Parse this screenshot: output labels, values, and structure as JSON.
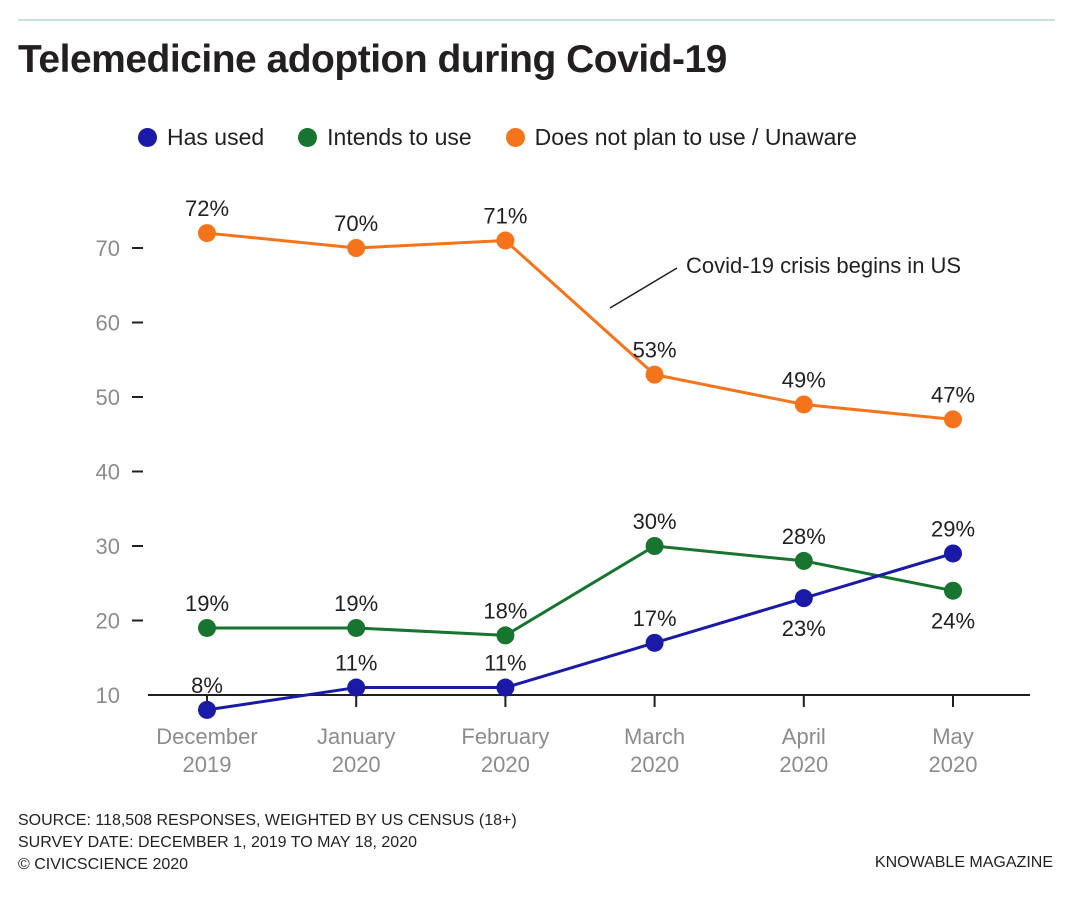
{
  "header": {
    "title": "Telemedicine adoption during Covid-19"
  },
  "colors": {
    "has_used": "#1a1aa6",
    "intends_to_use": "#17752f",
    "does_not_plan": "#f5741b",
    "axis": "#231f20",
    "tick_label": "#8c8c8c",
    "rule": "#c6e2e0"
  },
  "chart_data": {
    "type": "line",
    "title": "Telemedicine adoption during Covid-19",
    "xlabel": "",
    "ylabel": "",
    "categories": [
      "December 2019",
      "January 2020",
      "February 2020",
      "March 2020",
      "April 2020",
      "May 2020"
    ],
    "x_tick_labels": [
      [
        "December",
        "2019"
      ],
      [
        "January",
        "2020"
      ],
      [
        "February",
        "2020"
      ],
      [
        "March",
        "2020"
      ],
      [
        "April",
        "2020"
      ],
      [
        "May",
        "2020"
      ]
    ],
    "y_ticks": [
      10,
      20,
      30,
      40,
      50,
      60,
      70
    ],
    "ylim": [
      10,
      75
    ],
    "grid": false,
    "legend_position": "top",
    "series": [
      {
        "name": "Has used",
        "color": "#1a1aa6",
        "values": [
          8,
          11,
          11,
          17,
          23,
          29
        ],
        "labels": [
          "8%",
          "11%",
          "11%",
          "17%",
          "23%",
          "29%"
        ],
        "label_side": [
          "above",
          "above",
          "above",
          "above",
          "below",
          "above"
        ]
      },
      {
        "name": "Intends to use",
        "color": "#17752f",
        "values": [
          19,
          19,
          18,
          30,
          28,
          24
        ],
        "labels": [
          "19%",
          "19%",
          "18%",
          "30%",
          "28%",
          "24%"
        ],
        "label_side": [
          "above",
          "above",
          "above",
          "above",
          "above",
          "below"
        ]
      },
      {
        "name": "Does not plan to use / Unaware",
        "color": "#f5741b",
        "values": [
          72,
          70,
          71,
          53,
          49,
          47
        ],
        "labels": [
          "72%",
          "70%",
          "71%",
          "53%",
          "49%",
          "47%"
        ],
        "label_side": [
          "above",
          "above",
          "above",
          "above",
          "above",
          "above"
        ]
      }
    ],
    "annotations": [
      {
        "text": "Covid-19 crisis begins in US"
      }
    ]
  },
  "footer": {
    "source": "SOURCE: 118,508 RESPONSES, WEIGHTED BY US CENSUS (18+)",
    "survey_date": "SURVEY DATE: DECEMBER 1, 2019 TO MAY 18, 2020",
    "copyright": "© CIVICSCIENCE 2020",
    "credit": "KNOWABLE MAGAZINE"
  }
}
